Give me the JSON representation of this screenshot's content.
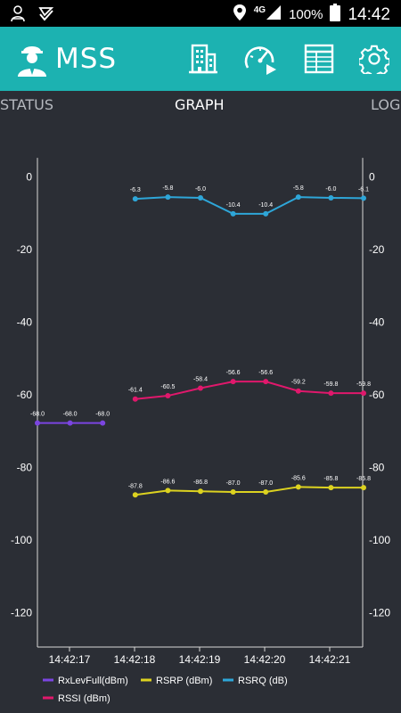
{
  "status_bar": {
    "network": "4G",
    "battery": "100%",
    "time": "14:42"
  },
  "app": {
    "title": "MSS"
  },
  "tabs": [
    {
      "label": "STATUS"
    },
    {
      "label": "GRAPH"
    },
    {
      "label": "LOG"
    }
  ],
  "chart_data": {
    "type": "line",
    "y_ticks": [
      0,
      -20,
      -40,
      -60,
      -80,
      -100,
      -120
    ],
    "ylim": [
      -130,
      5
    ],
    "x_ticks": [
      "14:42:17",
      "14:42:18",
      "14:42:19",
      "14:42:20",
      "14:42:21"
    ],
    "grid": false,
    "legend": "bottom",
    "series": [
      {
        "name": "RxLevFull(dBm)",
        "color": "#7b45e0",
        "x_index": [
          0,
          1,
          2
        ],
        "values": [
          -68.0,
          -68.0,
          -68.0
        ],
        "labels": [
          "-68.0",
          "-68.0",
          "-68.0"
        ]
      },
      {
        "name": "RSRP (dBm)",
        "color": "#dcd220",
        "x_index": [
          3,
          4,
          5,
          6,
          7,
          8,
          9,
          10
        ],
        "values": [
          -87.8,
          -86.6,
          -86.8,
          -87.0,
          -87.0,
          -85.6,
          -85.8,
          -85.8
        ],
        "labels": [
          "-87.8",
          "-86.6",
          "-86.8",
          "-87.0",
          "-87.0",
          "-85.6",
          "-85.8",
          "-85.8"
        ]
      },
      {
        "name": "RSRQ (dB)",
        "color": "#2ea6d8",
        "x_index": [
          3,
          4,
          5,
          6,
          7,
          8,
          9,
          10
        ],
        "values": [
          -6.3,
          -5.8,
          -6.0,
          -10.4,
          -10.4,
          -5.8,
          -6.0,
          -6.1
        ],
        "labels": [
          "-6.3",
          "-5.8",
          "-6.0",
          "-10.4",
          "-10.4",
          "-5.8",
          "-6.0",
          "-6.1"
        ]
      },
      {
        "name": "RSSI (dBm)",
        "color": "#e0186c",
        "x_index": [
          3,
          4,
          5,
          6,
          7,
          8,
          9,
          10
        ],
        "values": [
          -61.4,
          -60.5,
          -58.4,
          -56.6,
          -56.6,
          -59.2,
          -59.8,
          -59.8
        ],
        "labels": [
          "-61.4",
          "-60.5",
          "-58.4",
          "-56.6",
          "-56.6",
          "-59.2",
          "-59.8",
          "-59.8"
        ]
      }
    ]
  }
}
